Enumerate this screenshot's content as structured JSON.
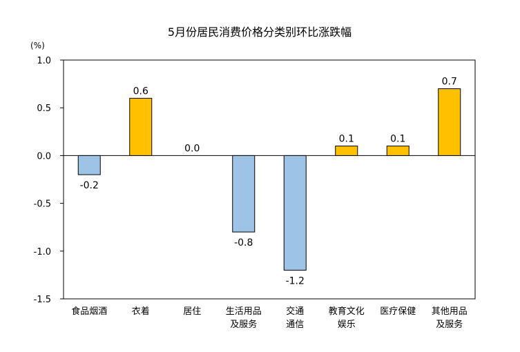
{
  "chart_data": {
    "type": "bar",
    "title": "5月份居民消费价格分类别环比涨跌幅",
    "unit": "(%)",
    "categories": [
      [
        "食品烟酒"
      ],
      [
        "衣着"
      ],
      [
        "居住"
      ],
      [
        "生活用品",
        "及服务"
      ],
      [
        "交通",
        "通信"
      ],
      [
        "教育文化",
        "娱乐"
      ],
      [
        "医疗保健"
      ],
      [
        "其他用品",
        "及服务"
      ]
    ],
    "values": [
      -0.2,
      0.6,
      0.0,
      -0.8,
      -1.2,
      0.1,
      0.1,
      0.7
    ],
    "value_labels": [
      "-0.2",
      "0.6",
      "0.0",
      "-0.8",
      "-1.2",
      "0.1",
      "0.1",
      "0.7"
    ],
    "ylim": [
      -1.5,
      1.0
    ],
    "yticks": [
      1.0,
      0.5,
      0.0,
      -0.5,
      -1.0,
      -1.5
    ],
    "ytick_labels": [
      "1.0",
      "0.5",
      "0.0",
      "-0.5",
      "-1.0",
      "-1.5"
    ],
    "grid": false,
    "colors": {
      "positive": "#FFC000",
      "negative": "#9DC3E6",
      "border": "#000000"
    }
  }
}
